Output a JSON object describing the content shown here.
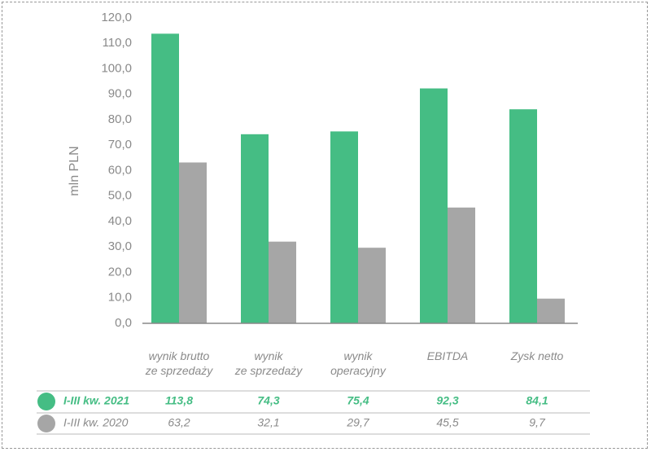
{
  "chart_data": {
    "type": "bar",
    "y_label": "mln PLN",
    "categories": [
      "wynik brutto\nze sprzedaży",
      "wynik\nze sprzedaży",
      "wynik\noperacyjny",
      "EBITDA",
      "Zysk netto"
    ],
    "series": [
      {
        "name": "I-III kw. 2021",
        "color": "#45bd84",
        "values": [
          113.8,
          74.3,
          75.4,
          92.3,
          84.1
        ],
        "value_labels": [
          "113,8",
          "74,3",
          "75,4",
          "92,3",
          "84,1"
        ]
      },
      {
        "name": "I-III kw. 2020",
        "color": "#a6a6a6",
        "values": [
          63.2,
          32.1,
          29.7,
          45.5,
          9.7
        ],
        "value_labels": [
          "63,2",
          "32,1",
          "29,7",
          "45,5",
          "9,7"
        ]
      }
    ],
    "ylim": [
      0,
      120
    ],
    "yticks": [
      {
        "value": 0,
        "label": "0,0"
      },
      {
        "value": 10,
        "label": "10,0"
      },
      {
        "value": 20,
        "label": "20,0"
      },
      {
        "value": 30,
        "label": "30,0"
      },
      {
        "value": 40,
        "label": "40,0"
      },
      {
        "value": 50,
        "label": "50,0"
      },
      {
        "value": 60,
        "label": "60,0"
      },
      {
        "value": 70,
        "label": "70,0"
      },
      {
        "value": 80,
        "label": "80,0"
      },
      {
        "value": 90,
        "label": "90,0"
      },
      {
        "value": 100,
        "label": "100,0"
      },
      {
        "value": 110,
        "label": "110,0"
      },
      {
        "value": 120,
        "label": "120,0"
      }
    ],
    "grid": false
  }
}
